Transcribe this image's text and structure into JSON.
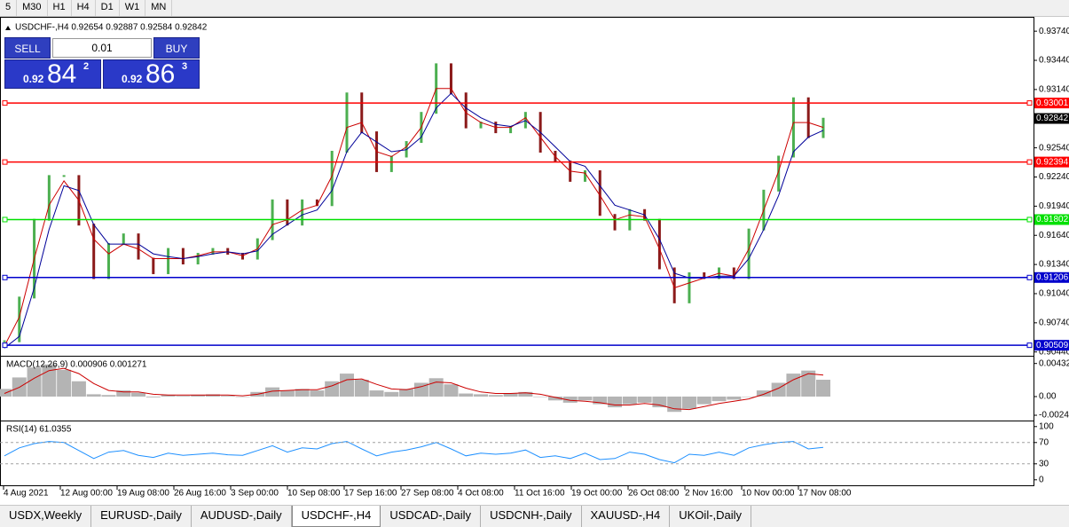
{
  "toolbar": {
    "timeframes": [
      "5",
      "M30",
      "H1",
      "H4",
      "D1",
      "W1",
      "MN"
    ]
  },
  "trade_panel": {
    "sell": "SELL",
    "buy": "BUY",
    "lot": "0.01",
    "bid": {
      "big": "0.92",
      "main": "84",
      "small": "2"
    },
    "ask": {
      "big": "0.92",
      "main": "86",
      "small": "3"
    }
  },
  "chart_data": [
    {
      "type": "line",
      "title": "USDCHF-,H4  0.92654 0.92887 0.92584 0.92842",
      "x_labels": [
        "4 Aug 2021",
        "12 Aug 00:00",
        "19 Aug 08:00",
        "26 Aug 16:00",
        "3 Sep 00:00",
        "10 Sep 08:00",
        "17 Sep 16:00",
        "27 Sep 08:00",
        "4 Oct 08:00",
        "11 Oct 16:00",
        "19 Oct 00:00",
        "26 Oct 08:00",
        "2 Nov 16:00",
        "10 Nov 00:00",
        "17 Nov 08:00"
      ],
      "ylim": [
        0.9041,
        0.9386
      ],
      "yticks": [
        {
          "value": 0.9374,
          "label": "0.93740"
        },
        {
          "value": 0.9344,
          "label": "0.93440"
        },
        {
          "value": 0.9314,
          "label": "0.93140"
        },
        {
          "value": 0.9254,
          "label": "0.92540"
        },
        {
          "value": 0.9224,
          "label": "0.92240"
        },
        {
          "value": 0.9194,
          "label": "0.91940"
        },
        {
          "value": 0.9164,
          "label": "0.91640"
        },
        {
          "value": 0.9134,
          "label": "0.91340"
        },
        {
          "value": 0.9104,
          "label": "0.91040"
        },
        {
          "value": 0.9074,
          "label": "0.90740"
        },
        {
          "value": 0.9044,
          "label": "0.90440"
        }
      ],
      "levels": [
        {
          "value": 0.93001,
          "color": "#ff0000"
        },
        {
          "value": 0.92394,
          "color": "#ff0000"
        },
        {
          "value": 0.91802,
          "color": "#00e000"
        },
        {
          "value": 0.91206,
          "color": "#0000cc"
        },
        {
          "value": 0.90509,
          "color": "#0000cc"
        }
      ],
      "current_price": 0.92842,
      "series": [
        {
          "style": "bars",
          "up_color": "#4caf50",
          "down_color": "#8b1a1a",
          "values": [
            0.9055,
            0.91,
            0.918,
            0.9225,
            0.9225,
            0.9175,
            0.912,
            0.9155,
            0.9165,
            0.914,
            0.9125,
            0.915,
            0.9135,
            0.9145,
            0.915,
            0.9145,
            0.914,
            0.916,
            0.92,
            0.9175,
            0.92,
            0.9195,
            0.925,
            0.931,
            0.927,
            0.923,
            0.9245,
            0.926,
            0.929,
            0.934,
            0.931,
            0.9275,
            0.928,
            0.927,
            0.9275,
            0.929,
            0.925,
            0.924,
            0.922,
            0.923,
            0.9185,
            0.917,
            0.919,
            0.918,
            0.913,
            0.9095,
            0.9125,
            0.912,
            0.913,
            0.912,
            0.917,
            0.921,
            0.9245,
            0.9305,
            0.9265,
            0.9284
          ]
        },
        {
          "style": "line",
          "color": "#cc0000",
          "values": [
            0.905,
            0.908,
            0.914,
            0.9195,
            0.922,
            0.92,
            0.916,
            0.9145,
            0.9155,
            0.915,
            0.914,
            0.914,
            0.914,
            0.9143,
            0.9147,
            0.9147,
            0.9143,
            0.915,
            0.9175,
            0.918,
            0.919,
            0.9195,
            0.9225,
            0.9275,
            0.928,
            0.925,
            0.9245,
            0.9255,
            0.9275,
            0.9315,
            0.9315,
            0.929,
            0.928,
            0.9275,
            0.9275,
            0.9285,
            0.9265,
            0.9245,
            0.923,
            0.9228,
            0.9205,
            0.918,
            0.9185,
            0.9183,
            0.915,
            0.911,
            0.9115,
            0.912,
            0.9125,
            0.9122,
            0.915,
            0.919,
            0.923,
            0.928,
            0.928,
            0.9275
          ]
        },
        {
          "style": "line",
          "color": "#000099",
          "values": [
            0.9048,
            0.906,
            0.911,
            0.917,
            0.9215,
            0.921,
            0.9175,
            0.9155,
            0.9155,
            0.9155,
            0.9145,
            0.9142,
            0.914,
            0.9142,
            0.9145,
            0.9147,
            0.9145,
            0.9148,
            0.9165,
            0.9175,
            0.9185,
            0.919,
            0.921,
            0.925,
            0.927,
            0.926,
            0.925,
            0.9252,
            0.9265,
            0.9295,
            0.931,
            0.9295,
            0.9285,
            0.9278,
            0.9276,
            0.9282,
            0.927,
            0.9255,
            0.924,
            0.9235,
            0.9215,
            0.9195,
            0.919,
            0.9185,
            0.916,
            0.9125,
            0.912,
            0.912,
            0.9122,
            0.9122,
            0.914,
            0.917,
            0.9205,
            0.925,
            0.9265,
            0.9272
          ]
        }
      ]
    },
    {
      "type": "line",
      "title": "MACD(12,26,9) 0.000906 0.001271",
      "ylim": [
        -0.0029,
        0.0051
      ],
      "yticks": [
        0.004323,
        {
          "value": 0,
          "label": "0.00"
        },
        -0.00244
      ],
      "series": [
        {
          "style": "histogram",
          "color": "#b4b4b4",
          "values": [
            0.001,
            0.0025,
            0.0038,
            0.0042,
            0.0035,
            0.002,
            0.0003,
            0.0002,
            0.0008,
            0.0005,
            -0.0001,
            0.0002,
            0.0001,
            0.0002,
            0.0003,
            0.0001,
            0,
            0.0006,
            0.0012,
            0.0008,
            0.001,
            0.0008,
            0.002,
            0.003,
            0.0022,
            0.0008,
            0.0006,
            0.001,
            0.0018,
            0.0024,
            0.0016,
            0.0004,
            0.0003,
            0.0002,
            0.0004,
            0.0006,
            0,
            -0.0005,
            -0.0008,
            -0.0005,
            -0.001,
            -0.0014,
            -0.001,
            -0.0008,
            -0.0014,
            -0.002,
            -0.0016,
            -0.001,
            -0.0006,
            -0.0004,
            0,
            0.0008,
            0.0018,
            0.003,
            0.0034,
            0.0022
          ]
        },
        {
          "style": "line",
          "color": "#cc0000",
          "values": [
            0.0004,
            0.0012,
            0.0024,
            0.0034,
            0.0037,
            0.003,
            0.0017,
            0.0008,
            0.0006,
            0.0006,
            0.0003,
            0.0002,
            0.0002,
            0.0002,
            0.0002,
            0.0002,
            0.0001,
            0.0003,
            0.0007,
            0.0008,
            0.0009,
            0.0009,
            0.0014,
            0.0022,
            0.0023,
            0.0016,
            0.001,
            0.0009,
            0.0013,
            0.0019,
            0.0018,
            0.0011,
            0.0006,
            0.0004,
            0.0004,
            0.0005,
            0.0003,
            -0.0001,
            -0.0005,
            -0.0006,
            -0.0008,
            -0.0011,
            -0.0011,
            -0.0009,
            -0.0011,
            -0.0016,
            -0.0017,
            -0.0013,
            -0.0009,
            -0.0006,
            -0.0003,
            0.0003,
            0.0011,
            0.0022,
            0.003,
            0.0028
          ]
        }
      ]
    },
    {
      "type": "line",
      "title": "RSI(14) 61.0355",
      "ylim": [
        -12,
        108
      ],
      "yticks": [
        100,
        70,
        30,
        0
      ],
      "levels": [
        {
          "value": 70,
          "color": "#a0a0a0"
        },
        {
          "value": 30,
          "color": "#a0a0a0"
        }
      ],
      "series": [
        {
          "style": "line",
          "color": "#1e90ff",
          "values": [
            45,
            60,
            68,
            72,
            70,
            55,
            40,
            52,
            55,
            46,
            42,
            50,
            46,
            48,
            50,
            47,
            46,
            55,
            64,
            52,
            60,
            58,
            68,
            72,
            58,
            45,
            52,
            56,
            62,
            70,
            58,
            45,
            50,
            48,
            50,
            56,
            42,
            45,
            40,
            50,
            38,
            40,
            52,
            48,
            38,
            32,
            48,
            46,
            52,
            46,
            60,
            66,
            70,
            72,
            58,
            61
          ]
        }
      ]
    }
  ],
  "tabs": [
    "USDX,Weekly",
    "EURUSD-,Daily",
    "AUDUSD-,Daily",
    "USDCHF-,H4",
    "USDCAD-,Daily",
    "USDCNH-,Daily",
    "XAUUSD-,H4",
    "UKOil-,Daily"
  ],
  "active_tab": "USDCHF-,H4"
}
